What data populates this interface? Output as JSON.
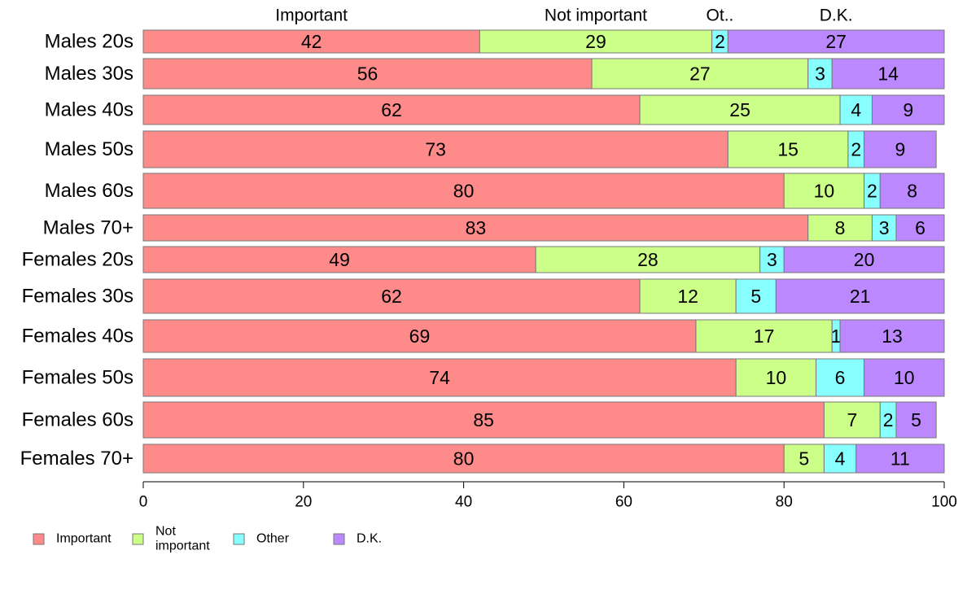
{
  "chart_data": {
    "type": "bar",
    "orientation": "horizontal",
    "stacked": true,
    "categories": [
      "Males 20s",
      "Males 30s",
      "Males 40s",
      "Males 50s",
      "Males 60s",
      "Males 70+",
      "Females 20s",
      "Females 30s",
      "Females 40s",
      "Females 50s",
      "Females 60s",
      "Females 70+"
    ],
    "series": [
      {
        "name": "Important",
        "top_label": "Important",
        "legend_label": [
          "Important"
        ],
        "color": "#FF8A8A",
        "values": [
          42,
          56,
          62,
          73,
          80,
          83,
          49,
          62,
          69,
          74,
          85,
          80
        ]
      },
      {
        "name": "Not important",
        "top_label": "Not important",
        "legend_label": [
          "Not",
          "important"
        ],
        "color": "#CCFF88",
        "values": [
          29,
          27,
          25,
          15,
          10,
          8,
          28,
          12,
          17,
          10,
          7,
          5
        ]
      },
      {
        "name": "Other",
        "top_label": "Ot..",
        "legend_label": [
          "Other"
        ],
        "color": "#88FFFF",
        "values": [
          2,
          3,
          4,
          2,
          2,
          3,
          3,
          5,
          1,
          6,
          2,
          4
        ]
      },
      {
        "name": "D.K.",
        "top_label": "D.K.",
        "legend_label": [
          "D.K."
        ],
        "color": "#BB88FF",
        "values": [
          27,
          14,
          9,
          9,
          8,
          6,
          20,
          21,
          13,
          10,
          5,
          11
        ]
      }
    ],
    "xlim": [
      0,
      100
    ],
    "xticks": [
      "0",
      "20",
      "40",
      "60",
      "80",
      "100"
    ],
    "grid": false,
    "legend_position": "bottom-left",
    "title": "",
    "xlabel": "",
    "ylabel": ""
  }
}
